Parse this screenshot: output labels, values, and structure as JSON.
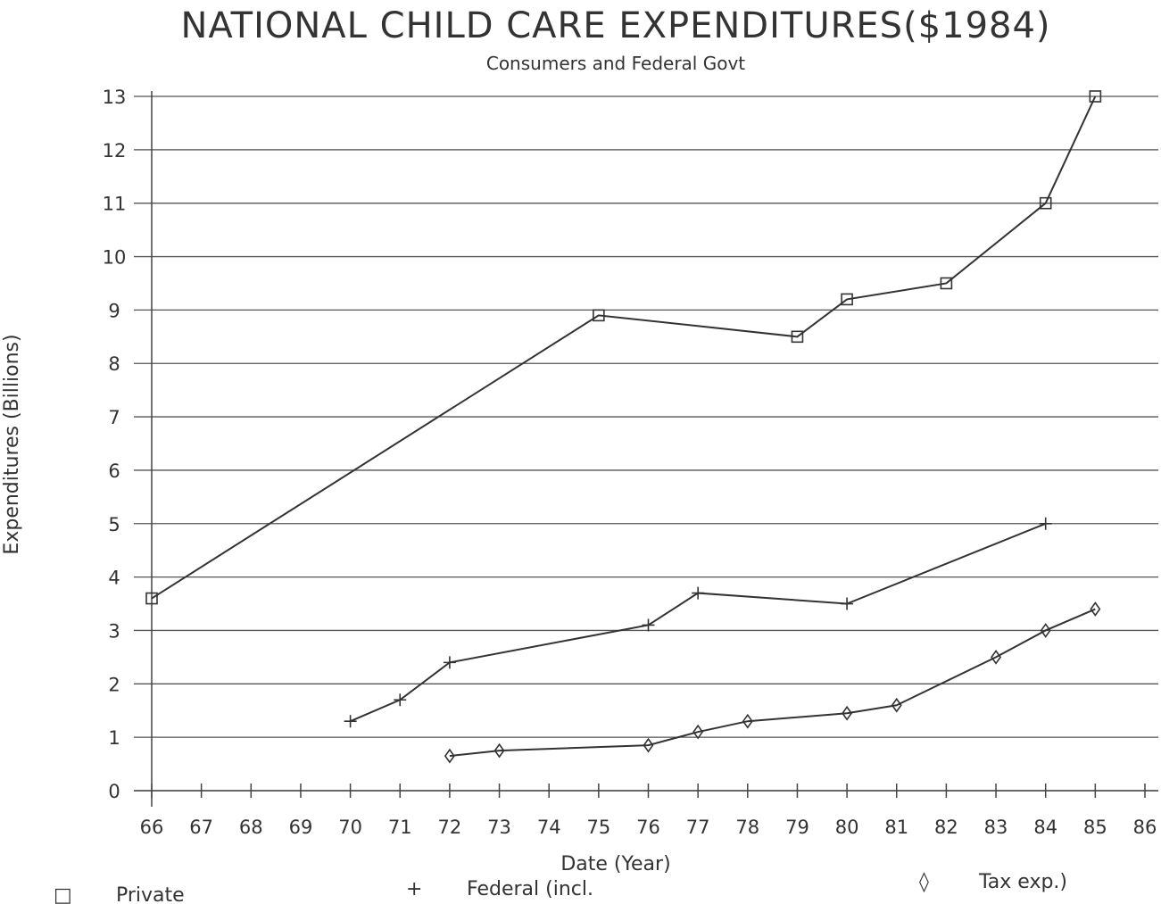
{
  "chart_data": {
    "type": "line",
    "title": "NATIONAL CHILD CARE EXPENDITURES($1984)",
    "subtitle": "Consumers and Federal Govt",
    "xlabel": "Date (Year)",
    "ylabel": "Expenditures (Billions)",
    "xlim": [
      66,
      86
    ],
    "ylim": [
      0,
      13
    ],
    "x_ticks": [
      "66",
      "67",
      "68",
      "69",
      "70",
      "71",
      "72",
      "73",
      "74",
      "75",
      "76",
      "77",
      "78",
      "79",
      "80",
      "81",
      "82",
      "83",
      "84",
      "85",
      "86"
    ],
    "y_ticks": [
      "0",
      "1",
      "2",
      "3",
      "4",
      "5",
      "6",
      "7",
      "8",
      "9",
      "10",
      "11",
      "12",
      "13"
    ],
    "grid": true,
    "legend_position": "bottom",
    "series": [
      {
        "name": "Private",
        "marker": "square",
        "x": [
          66,
          75,
          79,
          80,
          82,
          84,
          85
        ],
        "y": [
          3.6,
          8.9,
          8.5,
          9.2,
          9.5,
          11.0,
          13.0
        ]
      },
      {
        "name": "Federal (incl.",
        "marker": "plus",
        "x": [
          70,
          71,
          72,
          76,
          77,
          80,
          84
        ],
        "y": [
          1.3,
          1.7,
          2.4,
          3.1,
          3.7,
          3.5,
          5.0
        ]
      },
      {
        "name": "Tax exp.)",
        "marker": "diamond",
        "x": [
          72,
          73,
          76,
          77,
          78,
          80,
          81,
          83,
          84,
          85
        ],
        "y": [
          0.65,
          0.75,
          0.85,
          1.1,
          1.3,
          1.45,
          1.6,
          2.5,
          3.0,
          3.4
        ]
      }
    ],
    "legend": [
      {
        "symbol": "□",
        "label": "Private"
      },
      {
        "symbol": "+",
        "label": "Federal (incl."
      },
      {
        "symbol": "◊",
        "label": "Tax exp.)"
      }
    ]
  }
}
